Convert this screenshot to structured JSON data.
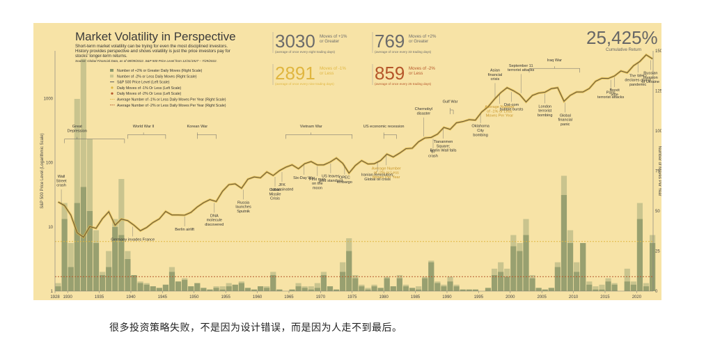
{
  "header": {
    "title": "Market Volatility in Perspective",
    "subtitle_lines": [
      "Short-term market volatility can be trying for even the most disciplined investors.",
      "History provides perspective and shows volatility is just the price investors pay for",
      "stocks' longer-term returns."
    ],
    "source": "Source: Global Financial Data, as of 08/09/2022. S&P 500 Price Level from 12/31/1927 – 7/29/2022."
  },
  "stats": [
    {
      "number": "3030",
      "label": [
        "Moves of +1%",
        "or Greater"
      ],
      "note": "(average of once every eight trading days)",
      "color": "#6b6b6b"
    },
    {
      "number": "769",
      "label": [
        "Moves of +2%",
        "or Greater"
      ],
      "note": "(average of once every 33 trading days)",
      "color": "#6b6b6b"
    },
    {
      "number": "2891",
      "label": [
        "Moves of -1%",
        "or Less"
      ],
      "note": "(average of once every nine trading days)",
      "color": "#e0b640"
    },
    {
      "number": "859",
      "label": [
        "Moves of -2%",
        "or Less"
      ],
      "note": "(average of once every 25 trading days)",
      "color": "#b5562a"
    }
  ],
  "cumulative": {
    "value": "25,425%",
    "label": "Cumulative Return"
  },
  "legend": [
    {
      "label": "Number of +2% or Greater Daily Moves (Right Scale)",
      "kind": "box",
      "color": "#8f9a6b"
    },
    {
      "label": "Number of -2% or Less Daily Moves (Right Scale)",
      "kind": "box",
      "color": "#c9c48e"
    },
    {
      "label": "S&P 500 Price Level (Left Scale)",
      "kind": "line",
      "color": "#5a5a5a"
    },
    {
      "label": "Daily Moves of -1% Or Less (Left Scale)",
      "kind": "dot",
      "color": "#e0b640"
    },
    {
      "label": "Daily Moves of -2% Or Less (Left Scale)",
      "kind": "dot",
      "color": "#b5562a"
    },
    {
      "label": "Average Number of -1% or Less Daily Moves Per Year (Right Scale)",
      "kind": "dash",
      "color": "#e0b640"
    },
    {
      "label": "Average Number of -2% or Less Daily Moves Per Year (Right Scale)",
      "kind": "dash",
      "color": "#b5562a"
    }
  ],
  "colors": {
    "panel": "#f7e3a6",
    "price": "#6a5a3a",
    "bar_dark": "#8f9a6b",
    "bar_light": "#c9c48e",
    "gold": "#e0b640",
    "rust": "#b5562a"
  },
  "chart_data": {
    "type": "bar",
    "title": "Market Volatility in Perspective",
    "x_ticks": [
      "1928",
      "1930",
      "1935",
      "1940",
      "1945",
      "1950",
      "1955",
      "1960",
      "1965",
      "1970",
      "1975",
      "1980",
      "1985",
      "1990",
      "1995",
      "2000",
      "2005",
      "2010",
      "2015",
      "2020"
    ],
    "xlim": [
      1928,
      2022.6
    ],
    "ylabel_left": "S&P 500 Price Level (Logarithmic Scale)",
    "ylabel_right": "Number of Moves Per Year",
    "y_left_ticks": [
      "1",
      "10",
      "100",
      "1000"
    ],
    "y_left_lim": [
      1,
      5500
    ],
    "y_left_scale": "log",
    "y_right_ticks": [
      "0",
      "25",
      "50",
      "75",
      "100",
      "125",
      "150"
    ],
    "y_right_lim": [
      0,
      150
    ],
    "years": [
      1928,
      1929,
      1930,
      1931,
      1932,
      1933,
      1934,
      1935,
      1936,
      1937,
      1938,
      1939,
      1940,
      1941,
      1942,
      1943,
      1944,
      1945,
      1946,
      1947,
      1948,
      1949,
      1950,
      1951,
      1952,
      1953,
      1954,
      1955,
      1956,
      1957,
      1958,
      1959,
      1960,
      1961,
      1962,
      1963,
      1964,
      1965,
      1966,
      1967,
      1968,
      1969,
      1970,
      1971,
      1972,
      1973,
      1974,
      1975,
      1976,
      1977,
      1978,
      1979,
      1980,
      1981,
      1982,
      1983,
      1984,
      1985,
      1986,
      1987,
      1988,
      1989,
      1990,
      1991,
      1992,
      1993,
      1994,
      1995,
      1996,
      1997,
      1998,
      1999,
      2000,
      2001,
      2002,
      2003,
      2004,
      2005,
      2006,
      2007,
      2008,
      2009,
      2010,
      2011,
      2012,
      2013,
      2014,
      2015,
      2016,
      2017,
      2018,
      2019,
      2020,
      2021,
      2022
    ],
    "series": [
      {
        "name": "Number of +2% or Greater Daily Moves (Right Scale)",
        "values": [
          3,
          45,
          15,
          120,
          145,
          95,
          38,
          12,
          25,
          45,
          70,
          20,
          10,
          6,
          5,
          3,
          2,
          4,
          12,
          6,
          7,
          3,
          5,
          2,
          1,
          2,
          3,
          5,
          4,
          5,
          2,
          1,
          3,
          3,
          10,
          1,
          0,
          1,
          3,
          2,
          1,
          2,
          10,
          3,
          1,
          12,
          25,
          8,
          4,
          1,
          3,
          2,
          8,
          3,
          10,
          4,
          2,
          3,
          8,
          18,
          6,
          4,
          6,
          4,
          1,
          1,
          1,
          0,
          2,
          10,
          12,
          9,
          28,
          25,
          35,
          10,
          2,
          1,
          2,
          15,
          72,
          38,
          12,
          30,
          4,
          1,
          1,
          6,
          4,
          0,
          6,
          4,
          45,
          3,
          30
        ]
      },
      {
        "name": "Number of -2% or Less Daily Moves (Right Scale)",
        "values": [
          5,
          55,
          30,
          55,
          65,
          50,
          30,
          10,
          15,
          40,
          35,
          25,
          10,
          5,
          4,
          3,
          2,
          4,
          15,
          6,
          8,
          3,
          5,
          2,
          1,
          3,
          1,
          3,
          4,
          6,
          2,
          1,
          3,
          2,
          12,
          1,
          0,
          1,
          5,
          3,
          3,
          5,
          12,
          3,
          1,
          18,
          33,
          10,
          3,
          2,
          4,
          2,
          9,
          3,
          8,
          3,
          2,
          1,
          9,
          19,
          5,
          3,
          9,
          3,
          1,
          1,
          1,
          0,
          2,
          14,
          18,
          14,
          35,
          30,
          45,
          8,
          2,
          1,
          2,
          18,
          60,
          30,
          18,
          30,
          6,
          3,
          4,
          8,
          5,
          0,
          14,
          6,
          55,
          5,
          35
        ]
      },
      {
        "name": "S&P 500 Price Level (Left Scale)",
        "values": [
          24.4,
          21.5,
          15.3,
          8.1,
          6.9,
          10.1,
          9.5,
          13.4,
          17.2,
          10.6,
          13.2,
          12.5,
          10.6,
          8.7,
          9.8,
          11.7,
          13.3,
          17.4,
          15.3,
          15.3,
          15.2,
          16.8,
          20.4,
          23.8,
          26.6,
          24.8,
          35.9,
          45.5,
          46.7,
          39.9,
          55.2,
          59.9,
          58.1,
          71.6,
          63.1,
          75.0,
          84.8,
          92.4,
          80.3,
          96.5,
          103.9,
          92.1,
          92.2,
          102.1,
          118.1,
          97.6,
          68.6,
          90.2,
          107.5,
          95.1,
          96.1,
          107.9,
          135.8,
          122.6,
          140.6,
          164.9,
          167.2,
          211.3,
          242.2,
          247.1,
          277.7,
          353.4,
          330.2,
          417.1,
          435.7,
          466.5,
          459.3,
          615.9,
          740.7,
          970.4,
          1229.2,
          1469.3,
          1320.3,
          1148.1,
          879.8,
          1111.9,
          1211.9,
          1248.3,
          1418.3,
          1468.4,
          903.3,
          1115.1,
          1257.6,
          1257.6,
          1426.2,
          1848.4,
          2058.9,
          2043.9,
          2238.8,
          2673.6,
          2506.9,
          3230.8,
          3756.1,
          4766.2,
          4130.3
        ]
      }
    ],
    "avg_lines": [
      {
        "name": "Average Number of -1% or Less Daily Moves Per Year",
        "value": 31
      },
      {
        "name": "Average Number of -2% or Less Daily Moves Per Year",
        "value": 9
      }
    ],
    "annotations": [
      {
        "text": [
          "Wall",
          "Street",
          "crash"
        ],
        "year": 1929,
        "kind": "text"
      },
      {
        "text": [
          "Great",
          "Depression"
        ],
        "year": 1931.5,
        "kind": "bracket",
        "span": [
          1929.5,
          1939
        ]
      },
      {
        "text": [
          "World War II"
        ],
        "year": 1942,
        "kind": "bracket",
        "span": [
          1939.5,
          1945.5
        ]
      },
      {
        "text": [
          "Korean War"
        ],
        "year": 1950.5,
        "kind": "bracket",
        "span": [
          1950.5,
          1953.5
        ]
      },
      {
        "text": [
          "Vietnam War"
        ],
        "year": 1968.5,
        "kind": "bracket",
        "span": [
          1964.5,
          1975
        ]
      },
      {
        "text": [
          "US economic recession"
        ],
        "year": 1980,
        "kind": "bracket",
        "span": [
          1980,
          1982
        ]
      },
      {
        "text": [
          "Gulf War"
        ],
        "year": 1990.5,
        "kind": "bracket",
        "span": [
          1990.5,
          1991
        ]
      },
      {
        "text": [
          "Oklahoma",
          "City",
          "bombing"
        ],
        "year": 1995.3,
        "kind": "text"
      },
      {
        "text": [
          "September 11",
          "terrorist attacks"
        ],
        "year": 2001.7,
        "kind": "text"
      },
      {
        "text": [
          "Iraq War"
        ],
        "year": 2007,
        "kind": "bracket",
        "span": [
          2003,
          2011
        ]
      },
      {
        "text": [
          "Germany invades France"
        ],
        "year": 1940.3,
        "kind": "text"
      },
      {
        "text": [
          "Berlin airlift"
        ],
        "year": 1948.5,
        "kind": "text"
      },
      {
        "text": [
          "DNA",
          "molecule",
          "discovered"
        ],
        "year": 1953.2,
        "kind": "text"
      },
      {
        "text": [
          "Russia",
          "launches",
          "Sputnik"
        ],
        "year": 1957.8,
        "kind": "text"
      },
      {
        "text": [
          "Cuban",
          "Missile",
          "Crisis"
        ],
        "year": 1962.8,
        "kind": "text"
      },
      {
        "text": [
          "JFK",
          "assassinated"
        ],
        "year": 1963.9,
        "kind": "text"
      },
      {
        "text": [
          "Six-Day War"
        ],
        "year": 1967.4,
        "kind": "text"
      },
      {
        "text": [
          "First man",
          "on the",
          "moon"
        ],
        "year": 1969.5,
        "kind": "text"
      },
      {
        "text": [
          "US leaves",
          "gold standard"
        ],
        "year": 1971.6,
        "kind": "text"
      },
      {
        "text": [
          "OPEC",
          "embargo"
        ],
        "year": 1973.8,
        "kind": "text"
      },
      {
        "text": [
          "Iranian Revolution;",
          "Global oil crisis"
        ],
        "year": 1979,
        "kind": "text"
      },
      {
        "text": [
          "'87",
          "crash"
        ],
        "year": 1987.8,
        "kind": "text"
      },
      {
        "text": [
          "Chernobyl",
          "disaster"
        ],
        "year": 1986.3,
        "kind": "text"
      },
      {
        "text": [
          "Tiananmen",
          "Square;",
          "Berlin Wall falls"
        ],
        "year": 1989.4,
        "kind": "text"
      },
      {
        "text": [
          "Asian",
          "financial",
          "crisis"
        ],
        "year": 1997.6,
        "kind": "text"
      },
      {
        "text": [
          "Dot-com",
          "bubble bursts"
        ],
        "year": 2000.2,
        "kind": "text"
      },
      {
        "text": [
          "London",
          "terrorist",
          "bombing"
        ],
        "year": 2005.5,
        "kind": "text"
      },
      {
        "text": [
          "Global",
          "financial",
          "panic"
        ],
        "year": 2008.7,
        "kind": "text"
      },
      {
        "text": [
          "Paris",
          "terrorist attacks"
        ],
        "year": 2015.9,
        "kind": "text"
      },
      {
        "text": [
          "Brexit",
          "vote"
        ],
        "year": 2016.5,
        "kind": "text"
      },
      {
        "text": [
          "The WHO",
          "declares global",
          "pandemic"
        ],
        "year": 2020.2,
        "kind": "text"
      },
      {
        "text": [
          "Russian",
          "Invasion",
          "of Ukraine"
        ],
        "year": 2022.2,
        "kind": "text"
      },
      {
        "text": [
          "Average Number",
          "of -2% or Less",
          "Moves Per Year"
        ],
        "year": 1980.4,
        "kind": "text",
        "color": "#b5562a"
      },
      {
        "text": [
          "Average Number",
          "of -1% or Less",
          "Moves Per Year"
        ],
        "year": 1998.3,
        "kind": "text",
        "color": "#e0b640"
      }
    ]
  },
  "caption": "很多投资策略失败，不是因为设计错误，而是因为人走不到最后。"
}
